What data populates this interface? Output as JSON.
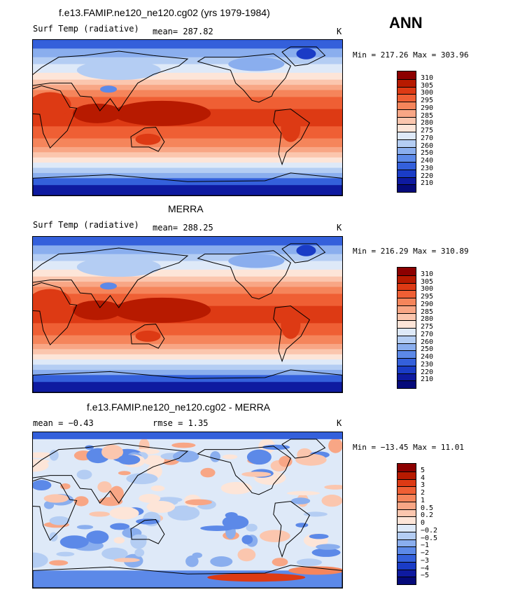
{
  "season": "ANN",
  "panels": [
    {
      "title": "f.e13.FAMIP.ne120_ne120.cg02 (yrs 1979-1984)",
      "left_label": "Surf Temp (radiative)",
      "center_label": "mean= 287.82",
      "units": "K",
      "minmax": "Min = 217.26 Max = 303.96"
    },
    {
      "title": "MERRA",
      "left_label": "Surf Temp (radiative)",
      "center_label": "mean= 288.25",
      "units": "K",
      "minmax": "Min = 216.29 Max = 310.89"
    },
    {
      "title": "f.e13.FAMIP.ne120_ne120.cg02 - MERRA",
      "left_label": "mean = −0.43",
      "center_label": "rmse =    1.35",
      "units": "K",
      "minmax": "Min = −13.45 Max =   11.01"
    }
  ],
  "chart_data": [
    {
      "type": "heatmap",
      "title": "f.e13.FAMIP.ne120_ne120.cg02 (yrs 1979-1984)",
      "variable": "Surf Temp (radiative)",
      "units": "K",
      "mean": 287.82,
      "min": 217.26,
      "max": 303.96,
      "colorbar_levels": [
        "310",
        "305",
        "300",
        "295",
        "290",
        "285",
        "280",
        "275",
        "270",
        "260",
        "250",
        "240",
        "230",
        "220",
        "210"
      ],
      "colorbar_colors": [
        "#8c0000",
        "#b71a00",
        "#dd3a14",
        "#ef5f34",
        "#f5855b",
        "#f8a685",
        "#fbc6ae",
        "#fde5d8",
        "#dee9f8",
        "#b4cdf3",
        "#8aaeee",
        "#5c89e8",
        "#3460db",
        "#1a3cc6",
        "#0e1aa0",
        "#050a7a"
      ]
    },
    {
      "type": "heatmap",
      "title": "MERRA",
      "variable": "Surf Temp (radiative)",
      "units": "K",
      "mean": 288.25,
      "min": 216.29,
      "max": 310.89,
      "colorbar_levels": [
        "310",
        "305",
        "300",
        "295",
        "290",
        "285",
        "280",
        "275",
        "270",
        "260",
        "250",
        "240",
        "230",
        "220",
        "210"
      ],
      "colorbar_colors": [
        "#8c0000",
        "#b71a00",
        "#dd3a14",
        "#ef5f34",
        "#f5855b",
        "#f8a685",
        "#fbc6ae",
        "#fde5d8",
        "#dee9f8",
        "#b4cdf3",
        "#8aaeee",
        "#5c89e8",
        "#3460db",
        "#1a3cc6",
        "#0e1aa0",
        "#050a7a"
      ]
    },
    {
      "type": "heatmap",
      "title": "f.e13.FAMIP.ne120_ne120.cg02 - MERRA",
      "units": "K",
      "mean": -0.43,
      "rmse": 1.35,
      "min": -13.45,
      "max": 11.01,
      "colorbar_levels": [
        "5",
        "4",
        "3",
        "2",
        "1",
        "0.5",
        "0.2",
        "0",
        "−0.2",
        "−0.5",
        "−1",
        "−2",
        "−3",
        "−4",
        "−5"
      ],
      "colorbar_colors": [
        "#8c0000",
        "#b71a00",
        "#dd3a14",
        "#ef5f34",
        "#f5855b",
        "#f8a685",
        "#fbc6ae",
        "#fde5d8",
        "#dee9f8",
        "#b4cdf3",
        "#8aaeee",
        "#5c89e8",
        "#3460db",
        "#1a3cc6",
        "#0e1aa0",
        "#050a7a"
      ]
    }
  ]
}
